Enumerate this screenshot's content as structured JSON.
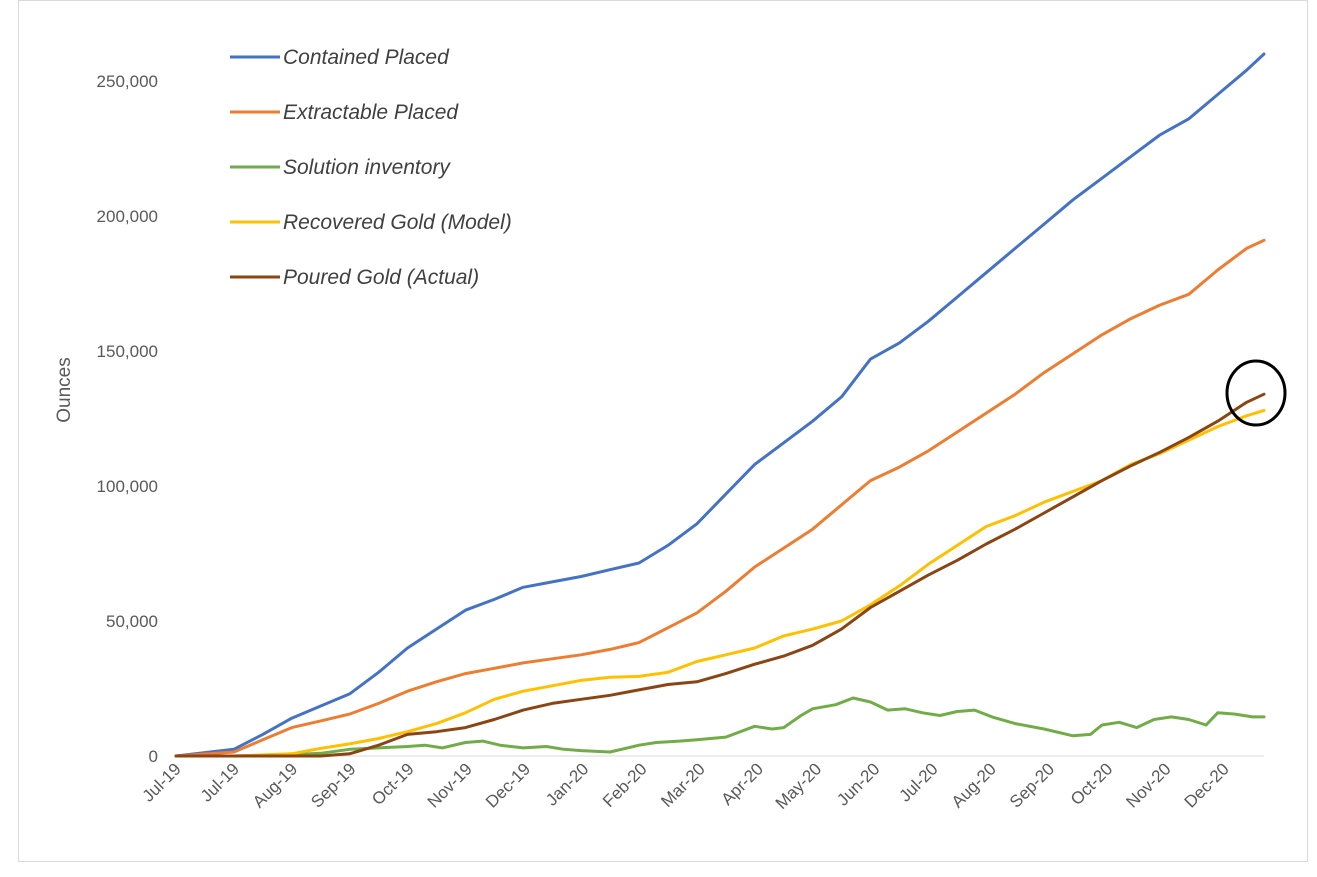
{
  "chart_data": {
    "type": "line",
    "ylabel": "Ounces",
    "xlabel": "",
    "ylim": [
      0,
      260000
    ],
    "yticks": [
      {
        "value": 0,
        "label": "0"
      },
      {
        "value": 50000,
        "label": "50,000"
      },
      {
        "value": 100000,
        "label": "100,000"
      },
      {
        "value": 150000,
        "label": "150,000"
      },
      {
        "value": 200000,
        "label": "200,000"
      },
      {
        "value": 250000,
        "label": "250,000"
      }
    ],
    "xtick_labels": [
      "Jul-19",
      "Jul-19",
      "Aug-19",
      "Sep-19",
      "Oct-19",
      "Nov-19",
      "Dec-19",
      "Jan-20",
      "Feb-20",
      "Mar-20",
      "Apr-20",
      "May-20",
      "Jun-20",
      "Jul-20",
      "Aug-20",
      "Sep-20",
      "Oct-20",
      "Nov-20",
      "Dec-20"
    ],
    "xlim": [
      0,
      18.8
    ],
    "grid": false,
    "legend_position": "top-left",
    "highlight": {
      "shape": "circle",
      "x": 18.7,
      "y": 131000
    },
    "series": [
      {
        "name": "Contained Placed",
        "color": "#4472C4",
        "x": [
          0,
          1,
          1.5,
          2,
          2.5,
          3,
          3.5,
          4,
          4.5,
          5,
          5.5,
          6,
          6.5,
          7,
          7.5,
          8,
          8.5,
          9,
          9.5,
          10,
          10.5,
          11,
          11.5,
          12,
          12.5,
          13,
          13.5,
          14,
          14.5,
          15,
          15.5,
          16,
          16.5,
          17,
          17.5,
          18,
          18.5,
          18.8
        ],
        "y": [
          0,
          2500,
          8000,
          14000,
          18500,
          23000,
          31000,
          40000,
          47000,
          54000,
          58000,
          62500,
          64500,
          66500,
          69000,
          71500,
          78000,
          86000,
          97000,
          108000,
          116000,
          124000,
          133000,
          147000,
          153000,
          161000,
          170000,
          179000,
          188000,
          197000,
          206000,
          214000,
          222000,
          230000,
          236000,
          245000,
          254000,
          260000
        ]
      },
      {
        "name": "Extractable Placed",
        "color": "#ED7D31",
        "x": [
          0,
          1,
          1.5,
          2,
          2.5,
          3,
          3.5,
          4,
          4.5,
          5,
          5.5,
          6,
          6.5,
          7,
          7.5,
          8,
          8.5,
          9,
          9.5,
          10,
          10.5,
          11,
          11.5,
          12,
          12.5,
          13,
          13.5,
          14,
          14.5,
          15,
          15.5,
          16,
          16.5,
          17,
          17.5,
          18,
          18.5,
          18.8
        ],
        "y": [
          0,
          1500,
          6000,
          10500,
          13000,
          15500,
          19500,
          24000,
          27500,
          30500,
          32500,
          34500,
          36000,
          37500,
          39500,
          42000,
          47500,
          53000,
          61000,
          70000,
          77000,
          84000,
          93000,
          102000,
          107000,
          113000,
          120000,
          127000,
          134000,
          142000,
          149000,
          156000,
          162000,
          167000,
          171000,
          180000,
          188000,
          191000
        ]
      },
      {
        "name": "Solution inventory",
        "color": "#70AD47",
        "x": [
          0,
          1,
          2,
          2.5,
          3,
          3.5,
          4,
          4.3,
          4.6,
          5,
          5.3,
          5.6,
          6,
          6.4,
          6.7,
          7,
          7.5,
          7.8,
          8,
          8.3,
          8.7,
          9,
          9.5,
          10,
          10.3,
          10.5,
          10.8,
          11,
          11.4,
          11.7,
          12,
          12.3,
          12.6,
          12.9,
          13.2,
          13.5,
          13.8,
          14.1,
          14.5,
          15,
          15.5,
          15.8,
          16,
          16.3,
          16.6,
          16.9,
          17.2,
          17.5,
          17.8,
          18,
          18.3,
          18.6,
          18.8
        ],
        "y": [
          0,
          0,
          500,
          1000,
          2500,
          3000,
          3500,
          4000,
          3000,
          5000,
          5500,
          4000,
          3000,
          3500,
          2500,
          2000,
          1500,
          3000,
          4000,
          5000,
          5500,
          6000,
          7000,
          11000,
          10000,
          10500,
          15000,
          17500,
          19000,
          21500,
          20000,
          17000,
          17500,
          16000,
          15000,
          16500,
          17000,
          14500,
          12000,
          10000,
          7500,
          8000,
          11500,
          12500,
          10500,
          13500,
          14500,
          13500,
          11500,
          16000,
          15500,
          14500,
          14500
        ]
      },
      {
        "name": "Recovered Gold (Model)",
        "color": "#FFC000",
        "x": [
          0,
          1,
          2,
          2.5,
          3,
          3.5,
          4,
          4.5,
          5,
          5.5,
          6,
          6.5,
          7,
          7.5,
          8,
          8.5,
          9,
          9.5,
          10,
          10.5,
          11,
          11.5,
          12,
          12.5,
          13,
          13.5,
          14,
          14.5,
          15,
          15.5,
          16,
          16.5,
          17,
          17.5,
          18,
          18.5,
          18.8
        ],
        "y": [
          0,
          0,
          800,
          2800,
          4500,
          6500,
          9000,
          12000,
          16000,
          21000,
          24000,
          26000,
          28000,
          29200,
          29500,
          31000,
          35000,
          37500,
          40000,
          44500,
          47000,
          50000,
          56000,
          63000,
          71000,
          78000,
          85000,
          89000,
          94000,
          98000,
          102000,
          108000,
          112000,
          117000,
          122000,
          126000,
          128000
        ]
      },
      {
        "name": "Poured Gold (Actual)",
        "color": "#8B4513",
        "x": [
          0,
          1,
          2,
          2.5,
          3,
          3.5,
          4,
          4.5,
          5,
          5.5,
          6,
          6.5,
          7,
          7.5,
          8,
          8.5,
          9,
          9.5,
          10,
          10.5,
          11,
          11.5,
          12,
          12.5,
          13,
          13.5,
          14,
          14.5,
          15,
          15.5,
          16,
          16.5,
          17,
          17.5,
          18,
          18.5,
          18.8
        ],
        "y": [
          0,
          0,
          0,
          0,
          800,
          4000,
          8000,
          9000,
          10500,
          13500,
          17000,
          19500,
          21000,
          22500,
          24500,
          26500,
          27500,
          30500,
          34000,
          37000,
          41000,
          47000,
          55000,
          61000,
          67000,
          72500,
          78500,
          84000,
          90000,
          96000,
          102000,
          107500,
          112500,
          118000,
          124000,
          131000,
          134000
        ]
      }
    ]
  }
}
